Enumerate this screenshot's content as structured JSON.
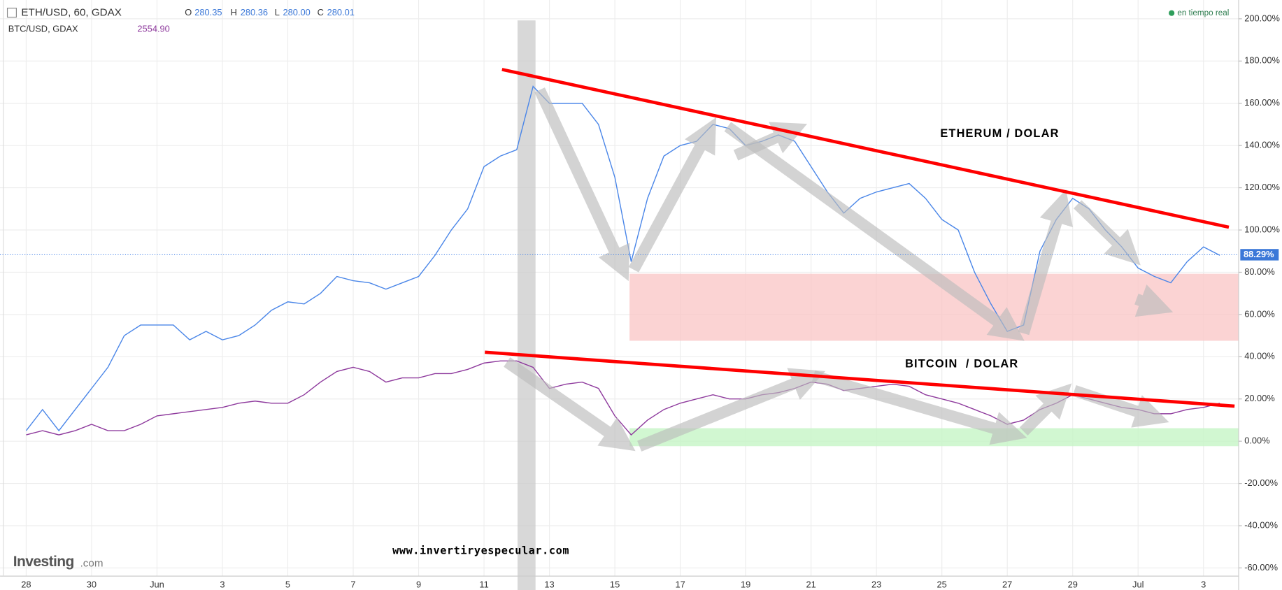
{
  "chart_data": {
    "type": "line",
    "categories": [
      "28",
      null,
      null,
      null,
      "30",
      null,
      null,
      null,
      "Jun",
      null,
      null,
      null,
      "3",
      null,
      null,
      null,
      "5",
      null,
      null,
      null,
      "7",
      null,
      null,
      null,
      "9",
      null,
      null,
      null,
      "11",
      null,
      null,
      null,
      "13",
      null,
      null,
      null,
      "15",
      null,
      null,
      null,
      "17",
      null,
      null,
      null,
      "19",
      null,
      null,
      null,
      "21",
      null,
      null,
      null,
      "23",
      null,
      null,
      null,
      "25",
      null,
      null,
      null,
      "27",
      null,
      null,
      null,
      "29",
      null,
      null,
      null,
      "Jul",
      null,
      null,
      null,
      "3",
      null
    ],
    "series": [
      {
        "name": "ETH/USD, 60, GDAX",
        "color": "#4a86e8",
        "ohlc": [
          {
            "name": "O",
            "value": 280.35
          },
          {
            "name": "H",
            "value": 280.36
          },
          {
            "name": "L",
            "value": 280,
            "label": "280.00"
          },
          {
            "name": "C",
            "value": 280.01
          }
        ],
        "values": [
          5,
          15,
          5,
          15,
          25,
          35,
          50,
          55,
          55,
          55,
          48,
          52,
          48,
          50,
          55,
          62,
          66,
          65,
          70,
          78,
          76,
          75,
          72,
          75,
          78,
          88,
          100,
          110,
          130,
          135,
          138,
          168,
          160,
          160,
          160,
          150,
          125,
          85,
          115,
          135,
          140,
          142,
          150,
          148,
          140,
          142,
          145,
          142,
          130,
          118,
          108,
          115,
          118,
          120,
          122,
          115,
          105,
          100,
          80,
          65,
          52,
          55,
          90,
          105,
          115,
          110,
          100,
          92,
          82,
          78,
          75,
          85,
          92,
          88
        ]
      },
      {
        "name": "BTC/USD, GDAX",
        "color": "#8e3a9d",
        "last": {
          "value": 2554.9,
          "label": "2554.90"
        },
        "values": [
          3,
          5,
          3,
          5,
          8,
          5,
          5,
          8,
          12,
          13,
          14,
          15,
          16,
          18,
          19,
          18,
          18,
          22,
          28,
          33,
          35,
          33,
          28,
          30,
          30,
          32,
          32,
          34,
          37,
          38,
          38,
          35,
          25,
          27,
          28,
          25,
          12,
          3,
          10,
          15,
          18,
          20,
          22,
          20,
          20,
          22,
          23,
          25,
          28,
          27,
          24,
          25,
          26,
          27,
          26,
          22,
          20,
          18,
          15,
          12,
          8,
          10,
          15,
          18,
          22,
          20,
          18,
          16,
          15,
          13,
          13,
          15,
          16,
          18
        ]
      }
    ],
    "last_value": {
      "value": 88.29,
      "label": "88.29%"
    },
    "ylim": [
      -64,
      204
    ],
    "yticks": [
      {
        "value": -60,
        "label": "-60.00%"
      },
      {
        "value": -40,
        "label": "-40.00%"
      },
      {
        "value": -20,
        "label": "-20.00%"
      },
      {
        "value": 0,
        "label": "0.00%"
      },
      {
        "value": 20,
        "label": "20.00%"
      },
      {
        "value": 40,
        "label": "40.00%"
      },
      {
        "value": 60,
        "label": "60.00%"
      },
      {
        "value": 80,
        "label": "80.00%"
      },
      {
        "value": 100,
        "label": "100.00%"
      },
      {
        "value": 120,
        "label": "120.00%"
      },
      {
        "value": 140,
        "label": "140.00%"
      },
      {
        "value": 160,
        "label": "160.00%"
      },
      {
        "value": 180,
        "label": "180.00%"
      },
      {
        "value": 200,
        "label": "200.00%"
      }
    ],
    "grid": true,
    "status": "en tiempo real",
    "annotations": [
      "ETHERUM / DOLAR",
      "BITCOIN  / DOLAR",
      "www.invertiryespecular.com"
    ],
    "logo": "Investing",
    "logo_suffix": ".com"
  }
}
